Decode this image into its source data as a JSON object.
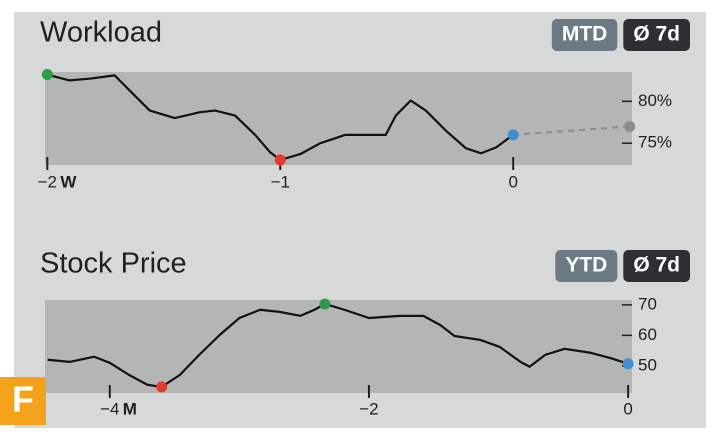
{
  "figure_label": "F",
  "chart_data": [
    {
      "type": "line",
      "title": "Workload",
      "badges": [
        {
          "text": "MTD",
          "color": "#6b7a84"
        },
        {
          "text": "Ø 7d",
          "color": "#2c3034"
        }
      ],
      "x_unit": "W",
      "x": [
        -2.0,
        -1.905,
        -1.819,
        -1.711,
        -1.647,
        -1.56,
        -1.453,
        -1.345,
        -1.28,
        -1.194,
        -1.108,
        -1.043,
        -1.0,
        -0.914,
        -0.828,
        -0.72,
        -0.591,
        -0.547,
        -0.504,
        -0.44,
        -0.375,
        -0.289,
        -0.203,
        -0.138,
        -0.073,
        0
      ],
      "values": [
        83.2,
        82.5,
        82.7,
        83.1,
        81.3,
        78.9,
        78.0,
        78.7,
        78.9,
        78.3,
        76.0,
        73.9,
        73.0,
        73.7,
        75.0,
        76.0,
        76.0,
        76.0,
        78.3,
        80.1,
        78.9,
        76.5,
        74.4,
        73.8,
        74.5,
        76.0
      ],
      "color": "#111111",
      "projection": {
        "x": [
          0,
          0.5
        ],
        "values": [
          76.0,
          77.0
        ],
        "color": "#8a8d8b"
      },
      "max_color": "#2e9c4a",
      "min_color": "#e53b2c",
      "last_color": "#3e8fd0",
      "xlim": [
        -2.01,
        0.51
      ],
      "ylim": [
        72.4,
        83.5
      ],
      "xticks": [
        {
          "value": -2,
          "label": "−2"
        },
        {
          "value": -1,
          "label": "−1"
        },
        0
      ],
      "yticks": [
        {
          "value": 75,
          "label": "75%"
        },
        {
          "value": 80,
          "label": "80%"
        }
      ]
    },
    {
      "type": "line",
      "title": "Stock Price",
      "badges": [
        {
          "text": "YTD",
          "color": "#6b7a84"
        },
        {
          "text": "Ø 7d",
          "color": "#2c3034"
        }
      ],
      "x_unit": "M",
      "x": [
        -4.48,
        -4.31,
        -4.12,
        -4.0,
        -3.85,
        -3.71,
        -3.6,
        -3.46,
        -3.31,
        -3.15,
        -3.0,
        -2.84,
        -2.69,
        -2.53,
        -2.42,
        -2.34,
        -2.19,
        -2.0,
        -1.76,
        -1.58,
        -1.45,
        -1.34,
        -1.14,
        -0.99,
        -0.83,
        -0.76,
        -0.64,
        -0.49,
        -0.29,
        -0.14,
        0
      ],
      "values": [
        52.0,
        51.3,
        53.0,
        51.0,
        47.0,
        43.8,
        43.1,
        47.0,
        53.6,
        60.2,
        65.7,
        68.4,
        67.7,
        66.4,
        68.4,
        70.3,
        68.4,
        65.7,
        66.4,
        66.4,
        63.4,
        59.8,
        58.5,
        56.2,
        51.3,
        49.7,
        53.6,
        55.6,
        54.3,
        52.6,
        50.7
      ],
      "color": "#111111",
      "max_color": "#2e9c4a",
      "min_color": "#e53b2c",
      "last_color": "#3e8fd0",
      "xlim": [
        -4.5,
        0.03
      ],
      "ylim": [
        41.1,
        71.6
      ],
      "xticks": [
        {
          "value": -4,
          "label": "−4"
        },
        {
          "value": -2,
          "label": "−2"
        },
        0
      ],
      "yticks": [
        50,
        60,
        70
      ]
    }
  ]
}
